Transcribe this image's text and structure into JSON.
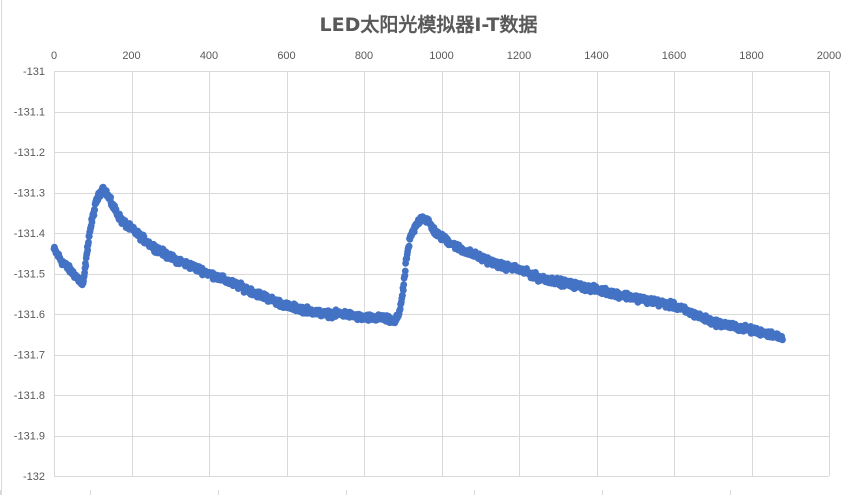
{
  "chart_data": {
    "type": "scatter",
    "title": "LED太阳光模拟器I-T数据",
    "xlabel": "",
    "ylabel": "",
    "xlim": [
      0,
      2000
    ],
    "ylim": [
      -132,
      -131
    ],
    "grid": true,
    "x_axis_position": "top",
    "x_ticks": [
      "0",
      "200",
      "400",
      "600",
      "800",
      "1000",
      "1200",
      "1400",
      "1600",
      "1800",
      "2000"
    ],
    "y_ticks": [
      "-131",
      "-131.1",
      "-131.2",
      "-131.3",
      "-131.4",
      "-131.5",
      "-131.6",
      "-131.7",
      "-131.8",
      "-131.9",
      "-132"
    ],
    "marker_color": "#4472c4",
    "series": [
      {
        "trend": [
          [
            0,
            -131.44
          ],
          [
            20,
            -131.47
          ],
          [
            40,
            -131.49
          ],
          [
            60,
            -131.51
          ],
          [
            75,
            -131.53
          ],
          [
            80,
            -131.49
          ],
          [
            90,
            -131.41
          ],
          [
            100,
            -131.36
          ],
          [
            110,
            -131.32
          ],
          [
            125,
            -131.29
          ],
          [
            135,
            -131.3
          ],
          [
            150,
            -131.33
          ],
          [
            175,
            -131.37
          ],
          [
            200,
            -131.39
          ],
          [
            250,
            -131.43
          ],
          [
            300,
            -131.46
          ],
          [
            350,
            -131.48
          ],
          [
            400,
            -131.5
          ],
          [
            450,
            -131.52
          ],
          [
            500,
            -131.54
          ],
          [
            550,
            -131.56
          ],
          [
            600,
            -131.58
          ],
          [
            650,
            -131.59
          ],
          [
            700,
            -131.6
          ],
          [
            750,
            -131.6
          ],
          [
            800,
            -131.61
          ],
          [
            850,
            -131.61
          ],
          [
            880,
            -131.62
          ],
          [
            890,
            -131.6
          ],
          [
            900,
            -131.55
          ],
          [
            910,
            -131.46
          ],
          [
            920,
            -131.41
          ],
          [
            935,
            -131.38
          ],
          [
            950,
            -131.36
          ],
          [
            965,
            -131.37
          ],
          [
            985,
            -131.4
          ],
          [
            1000,
            -131.41
          ],
          [
            1050,
            -131.44
          ],
          [
            1100,
            -131.46
          ],
          [
            1150,
            -131.48
          ],
          [
            1200,
            -131.49
          ],
          [
            1250,
            -131.51
          ],
          [
            1300,
            -131.52
          ],
          [
            1350,
            -131.53
          ],
          [
            1400,
            -131.54
          ],
          [
            1450,
            -131.55
          ],
          [
            1500,
            -131.56
          ],
          [
            1550,
            -131.57
          ],
          [
            1600,
            -131.58
          ],
          [
            1650,
            -131.6
          ],
          [
            1700,
            -131.62
          ],
          [
            1750,
            -131.63
          ],
          [
            1800,
            -131.64
          ],
          [
            1850,
            -131.65
          ],
          [
            1880,
            -131.66
          ]
        ],
        "count": 1880,
        "noise": 0.012
      }
    ]
  }
}
